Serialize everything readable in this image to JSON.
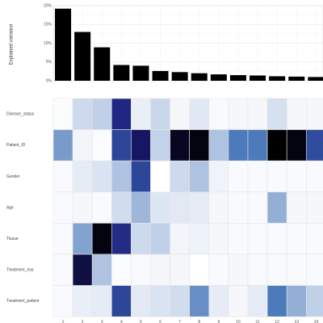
{
  "chart_data": [
    {
      "type": "bar",
      "ylabel": "Explained variance",
      "yticks": [
        "0%",
        "5%",
        "10%",
        "15%",
        "20%"
      ],
      "ylim": [
        0,
        20
      ],
      "grid": true,
      "categories": [
        "1",
        "2",
        "3",
        "4",
        "5",
        "6",
        "7",
        "8",
        "9",
        "10",
        "11",
        "12",
        "13",
        "14"
      ],
      "values": [
        19.2,
        13.0,
        8.9,
        4.2,
        4.0,
        2.6,
        2.3,
        2.0,
        1.7,
        1.5,
        1.4,
        1.2,
        1.1,
        1.0
      ],
      "bar_color": "#000000"
    },
    {
      "type": "heatmap",
      "rows": [
        "Disease_status",
        "Patient_ID",
        "Gender",
        "Age",
        "Tissue",
        "Treatment_exp",
        "Treatment_patient"
      ],
      "columns": [
        "1",
        "2",
        "3",
        "4",
        "5",
        "6",
        "7",
        "8",
        "9",
        "10",
        "11",
        "12",
        "13",
        "14"
      ],
      "values": [
        [
          0.02,
          0.24,
          0.3,
          0.82,
          0.1,
          0.25,
          0.05,
          0.15,
          0.03,
          0.05,
          0.05,
          0.2,
          0.05,
          0.05
        ],
        [
          0.46,
          0.06,
          0.02,
          0.72,
          0.88,
          0.28,
          0.96,
          0.98,
          0.34,
          0.56,
          0.56,
          1.0,
          0.98,
          0.7
        ],
        [
          0.03,
          0.12,
          0.18,
          0.34,
          0.72,
          0.0,
          0.24,
          0.34,
          0.07,
          0.03,
          0.03,
          0.03,
          0.03,
          0.03
        ],
        [
          0.03,
          0.05,
          0.03,
          0.22,
          0.38,
          0.16,
          0.14,
          0.12,
          0.05,
          0.03,
          0.03,
          0.4,
          0.05,
          0.05
        ],
        [
          0.03,
          0.44,
          0.98,
          0.8,
          0.24,
          0.3,
          0.06,
          0.08,
          0.05,
          0.03,
          0.03,
          0.03,
          0.03,
          0.03
        ],
        [
          0.03,
          0.92,
          0.34,
          0.02,
          0.03,
          0.05,
          0.05,
          0.0,
          0.03,
          0.05,
          0.03,
          0.03,
          0.03,
          0.03
        ],
        [
          0.03,
          0.1,
          0.12,
          0.72,
          0.14,
          0.18,
          0.22,
          0.5,
          0.12,
          0.05,
          0.12,
          0.56,
          0.4,
          0.3
        ]
      ],
      "color_low": "#ffffff",
      "color_mid": "#3b6db3",
      "color_high": "#000000"
    }
  ]
}
